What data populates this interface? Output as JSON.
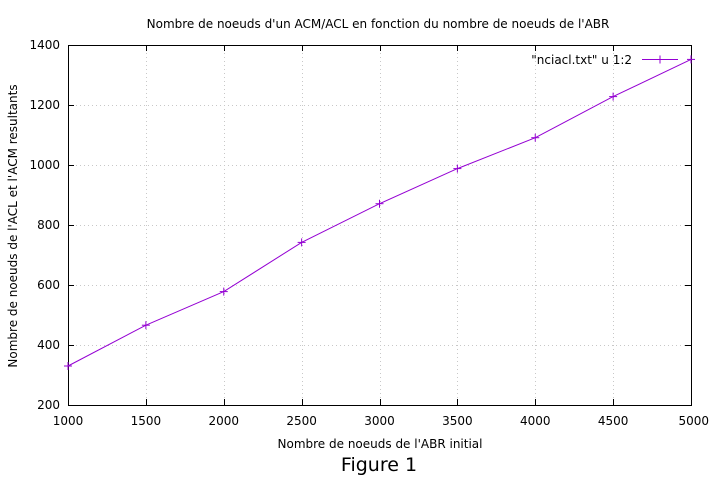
{
  "figure_caption": "Figure 1",
  "colors": {
    "series": "#9400d3",
    "grid": "#c8c8c8",
    "axis": "#000000",
    "background": "#ffffff"
  },
  "chart_data": {
    "type": "line",
    "title": "Nombre de noeuds d'un ACM/ACL en fonction du nombre de noeuds de l'ABR",
    "xlabel": "Nombre de noeuds de l'ABR initial",
    "ylabel": "Nombre de noeuds de l'ACL et l'ACM resultants",
    "xlim": [
      1000,
      5000
    ],
    "ylim": [
      200,
      1400
    ],
    "xticks": [
      1000,
      1500,
      2000,
      2500,
      3000,
      3500,
      4000,
      4500,
      5000
    ],
    "yticks": [
      200,
      400,
      600,
      800,
      1000,
      1200,
      1400
    ],
    "grid": true,
    "legend_position": "top-right",
    "marker": "plus",
    "series": [
      {
        "name": "\"nciacl.txt\" u 1:2",
        "x": [
          1000,
          1500,
          2000,
          2500,
          3000,
          3500,
          4000,
          4500,
          5000
        ],
        "y": [
          330,
          466,
          578,
          742,
          871,
          988,
          1091,
          1228,
          1352
        ]
      }
    ]
  }
}
